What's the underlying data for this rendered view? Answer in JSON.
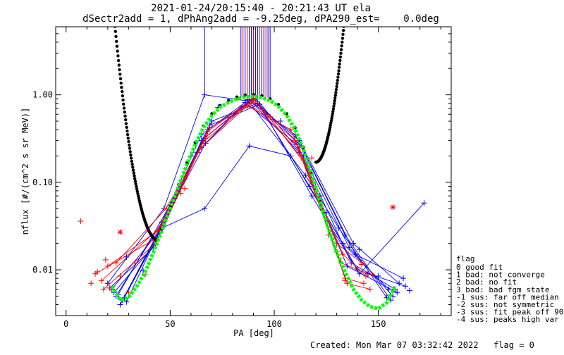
{
  "chart_data": {
    "type": "line",
    "title_line1": "2021-01-24/20:15:40 - 20:21:43 UT ela",
    "title_line2": "dSectr2add = 1, dPhAng2add = -9.25deg, dPA290_est=    0.0deg",
    "xlabel": "PA [deg]",
    "ylabel": "nflux [#/(cm^2 s sr MeV)]",
    "xlim": [
      -5,
      185
    ],
    "ylim": [
      0.003,
      6.0
    ],
    "yscale": "log",
    "x_ticks": [
      0,
      50,
      100,
      150
    ],
    "y_ticks": [
      {
        "value": 0.01,
        "label": "0.01"
      },
      {
        "value": 0.1,
        "label": "0.10"
      },
      {
        "value": 1.0,
        "label": "1.00"
      }
    ],
    "colors": {
      "red": "#ff0000",
      "blue": "#0000ff",
      "green": "#00ff00",
      "black": "#000000"
    },
    "vertical_marks": [
      {
        "x": 66.5,
        "color": "#0000ff"
      },
      {
        "x": 84,
        "color": "#0000ff"
      },
      {
        "x": 85,
        "color": "#ff0000"
      },
      {
        "x": 86,
        "color": "#0000ff"
      },
      {
        "x": 87,
        "color": "#ff0000"
      },
      {
        "x": 88,
        "color": "#0000ff"
      },
      {
        "x": 89,
        "color": "#0000ff"
      },
      {
        "x": 90,
        "color": "#ff0000"
      },
      {
        "x": 91,
        "color": "#0000ff"
      },
      {
        "x": 92,
        "color": "#0000ff"
      },
      {
        "x": 93,
        "color": "#ff0000"
      },
      {
        "x": 94,
        "color": "#0000ff"
      },
      {
        "x": 95,
        "color": "#0000ff"
      },
      {
        "x": 96,
        "color": "#ff0000"
      },
      {
        "x": 97,
        "color": "#0000ff"
      },
      {
        "x": 98,
        "color": "#0000ff"
      }
    ],
    "series": [
      {
        "color": "#0000ff",
        "x": [
          27,
          44,
          66.5,
          89,
          112,
          138,
          160
        ],
        "y": [
          0.0045,
          0.025,
          0.32,
          0.88,
          0.3,
          0.02,
          0.007
        ]
      },
      {
        "color": "#0000ff",
        "x": [
          24,
          46,
          65,
          86,
          111,
          137,
          158
        ],
        "y": [
          0.005,
          0.035,
          0.35,
          0.82,
          0.27,
          0.012,
          0.006
        ]
      },
      {
        "color": "#0000ff",
        "x": [
          22,
          45,
          68,
          91,
          114,
          136,
          157
        ],
        "y": [
          0.006,
          0.028,
          0.4,
          0.92,
          0.2,
          0.018,
          0.005
        ]
      },
      {
        "color": "#0000ff",
        "x": [
          26,
          48,
          67,
          88,
          110,
          134,
          156
        ],
        "y": [
          0.004,
          0.04,
          0.28,
          0.86,
          0.35,
          0.025,
          0.0045
        ]
      },
      {
        "color": "#0000ff",
        "x": [
          23,
          43,
          65,
          90,
          113,
          139,
          162
        ],
        "y": [
          0.0055,
          0.02,
          0.3,
          0.9,
          0.26,
          0.015,
          0.008
        ]
      },
      {
        "color": "#0000ff",
        "x": [
          20,
          47,
          66.5,
          89,
          112,
          135,
          159
        ],
        "y": [
          0.007,
          0.05,
          1.0,
          0.84,
          0.22,
          0.011,
          0.0055
        ]
      },
      {
        "color": "#0000ff",
        "x": [
          28,
          46,
          66.5,
          88,
          108,
          133,
          155
        ],
        "y": [
          0.0048,
          0.03,
          0.05,
          0.26,
          0.2,
          0.02,
          0.006
        ]
      },
      {
        "color": "#0000ff",
        "x": [
          25,
          50,
          70,
          92,
          117,
          140,
          163
        ],
        "y": [
          0.0052,
          0.055,
          0.5,
          0.8,
          0.09,
          0.01,
          0.0065
        ]
      },
      {
        "color": "#0000ff",
        "x": [
          21,
          42,
          63,
          87,
          115,
          131,
          154
        ],
        "y": [
          0.0062,
          0.018,
          0.22,
          0.88,
          0.12,
          0.03,
          0.0048
        ]
      },
      {
        "color": "#0000ff",
        "x": [
          29,
          49,
          69,
          93,
          118,
          141,
          172
        ],
        "y": [
          0.0043,
          0.045,
          0.45,
          0.78,
          0.07,
          0.009,
          0.058
        ]
      },
      {
        "color": "#ff0000",
        "x": [
          20,
          44,
          67,
          89,
          110,
          132,
          145
        ],
        "y": [
          0.011,
          0.028,
          0.33,
          0.85,
          0.3,
          0.012,
          0.009
        ]
      },
      {
        "color": "#ff0000",
        "x": [
          17,
          46,
          66,
          88,
          112,
          134,
          143
        ],
        "y": [
          0.0075,
          0.032,
          0.29,
          0.8,
          0.25,
          0.008,
          0.007
        ]
      },
      {
        "color": "#ff0000",
        "x": [
          14,
          42,
          68,
          90,
          114,
          130,
          142
        ],
        "y": [
          0.009,
          0.022,
          0.38,
          0.92,
          0.18,
          0.02,
          0.012
        ]
      },
      {
        "color": "#ff0000",
        "x": [
          24,
          48,
          65,
          87,
          108,
          133,
          144
        ],
        "y": [
          0.012,
          0.05,
          0.25,
          0.75,
          0.4,
          0.015,
          0.0085
        ]
      },
      {
        "color": "#ff0000",
        "x": [
          18,
          43,
          69,
          91,
          116,
          135,
          146
        ],
        "y": [
          0.006,
          0.02,
          0.42,
          0.88,
          0.15,
          0.007,
          0.006
        ]
      }
    ],
    "red_scatter": [
      {
        "x": 7,
        "y": 0.036
      },
      {
        "x": 12,
        "y": 0.007
      },
      {
        "x": 15,
        "y": 0.0095
      },
      {
        "x": 19,
        "y": 0.013
      },
      {
        "x": 21,
        "y": 0.0062
      },
      {
        "x": 26,
        "y": 0.0085
      },
      {
        "x": 30,
        "y": 0.0055
      },
      {
        "x": 33,
        "y": 0.012
      },
      {
        "x": 38,
        "y": 0.0088
      },
      {
        "x": 55,
        "y": 0.075
      },
      {
        "x": 57,
        "y": 0.085
      },
      {
        "x": 98,
        "y": 0.56
      },
      {
        "x": 118,
        "y": 0.19
      },
      {
        "x": 126,
        "y": 0.025
      },
      {
        "x": 130,
        "y": 0.016
      },
      {
        "x": 134,
        "y": 0.0075
      },
      {
        "x": 142,
        "y": 0.0115
      },
      {
        "x": 147,
        "y": 0.0088
      }
    ],
    "blue_scatter": [
      {
        "x": 29,
        "y": 0.014
      },
      {
        "x": 37,
        "y": 0.0098
      },
      {
        "x": 60,
        "y": 0.2
      },
      {
        "x": 73,
        "y": 0.72
      },
      {
        "x": 103,
        "y": 0.5
      },
      {
        "x": 122,
        "y": 0.07
      },
      {
        "x": 125,
        "y": 0.045
      },
      {
        "x": 141,
        "y": 0.017
      },
      {
        "x": 145,
        "y": 0.009
      },
      {
        "x": 150,
        "y": 0.0085
      },
      {
        "x": 165,
        "y": 0.0058
      }
    ],
    "red_stars": [
      {
        "x": 26,
        "y": 0.027
      },
      {
        "x": 157,
        "y": 0.052
      }
    ],
    "black_dotted_curve": {
      "x_ranges": [
        [
          22,
          44
        ],
        [
          120,
          138
        ]
      ],
      "y_min_left": 0.022,
      "y_min_right": 0.17
    },
    "green_fit_curve": {
      "x": [
        22,
        26,
        30,
        34,
        38,
        42,
        46,
        50,
        54,
        58,
        62,
        66,
        70,
        74,
        78,
        82,
        86,
        90,
        94,
        98,
        102,
        106,
        110,
        114,
        118,
        122,
        126,
        130,
        134,
        138,
        142,
        146,
        150,
        154,
        158
      ],
      "y": [
        0.0065,
        0.0045,
        0.0048,
        0.0065,
        0.0095,
        0.016,
        0.028,
        0.05,
        0.09,
        0.16,
        0.27,
        0.42,
        0.58,
        0.72,
        0.82,
        0.9,
        0.95,
        0.96,
        0.93,
        0.86,
        0.74,
        0.58,
        0.4,
        0.24,
        0.12,
        0.06,
        0.03,
        0.016,
        0.0095,
        0.006,
        0.0045,
        0.0038,
        0.0036,
        0.0042,
        0.0065
      ]
    },
    "legend_title": "flag",
    "legend_entries": [
      " 0 good fit",
      " 1 bad: not converge",
      " 2 bad: no fit",
      " 3 bad: bad fgm state",
      "-1 sus: far off median",
      "-2 sus: not symmetric",
      "-3 sus: fit peak off 90",
      "-4 sus: peaks high var"
    ],
    "footer": "Created: Mon Mar 07 03:32:42 2022   flag = 0"
  }
}
